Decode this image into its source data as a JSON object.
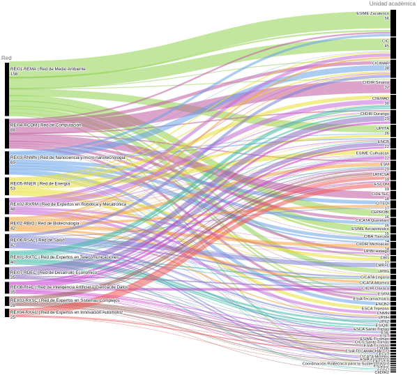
{
  "chart_data": {
    "type": "sankey",
    "left_axis_title": "Red",
    "right_axis_title": "Unidad académica",
    "sources": [
      {
        "label": "REI01-REMA | Red de Medio Ambiente",
        "value": 158,
        "color": "#8fd14f"
      },
      {
        "label": "REI04-RCOM | Red de Computación",
        "value": 88,
        "color": "#c05aa0"
      },
      {
        "label": "REI03-RNMN | Red de Nanociencia y micro-nanotecnología",
        "value": 69,
        "color": "#6aa3e8"
      },
      {
        "label": "REI05-RNER | Red de Energía",
        "value": 53,
        "color": "#e8e032"
      },
      {
        "label": "REX02-RXRM | Red de Expertos en Robótica y Mecatrónica",
        "value": 48,
        "color": "#c46ad8"
      },
      {
        "label": "REI02-RBIO | Red de Biotecnología",
        "value": 42,
        "color": "#f5a23a"
      },
      {
        "label": "REI06-RSAL | Red de Salud",
        "value": 42,
        "color": "#7b7fd6"
      },
      {
        "label": "REX01-RXTC | Red de Expertos en Telecomunicaciones",
        "value": 40,
        "color": "#3fb9a8"
      },
      {
        "label": "REI07-RDEC | Red de Desarrollo Económico",
        "value": 35,
        "color": "#8a6bbf"
      },
      {
        "label": "REI08-RIAC | Red de Inteligencia Artificial y Ciencia de Datos",
        "value": 35,
        "color": "#c93ccf"
      },
      {
        "label": "REX03-RXSC | Red de Expertos en Sistemas Complejos",
        "value": 28,
        "color": "#9b5e5e"
      },
      {
        "label": "REX04-RXAU | Red de Expertos en Innovación Automotriz",
        "value": 25,
        "color": "#f05a5a"
      }
    ],
    "targets": [
      {
        "label": "ESIME Zacatenco",
        "value": 56
      },
      {
        "label": "CIC",
        "value": 45
      },
      {
        "label": "CICIMAR",
        "value": 38
      },
      {
        "label": "CIIDIR Sinaloa",
        "value": 32
      },
      {
        "label": "CIIEMAD",
        "value": 30
      },
      {
        "label": "CIIDIR Durango",
        "value": 29
      },
      {
        "label": "UPIITA",
        "value": 26
      },
      {
        "label": "ENCB",
        "value": 22
      },
      {
        "label": "ESIME Culhuacan",
        "value": 22
      },
      {
        "label": "ESM",
        "value": 20
      },
      {
        "label": "UPIICSA",
        "value": 19
      },
      {
        "label": "ESCOM",
        "value": 19
      },
      {
        "label": "CIDETEC",
        "value": 18
      },
      {
        "label": "CITEDI",
        "value": 17
      },
      {
        "label": "CEPROBI",
        "value": 16
      },
      {
        "label": "CICATA Querétaro",
        "value": 16
      },
      {
        "label": "ESIME Azcapotzalco",
        "value": 15
      },
      {
        "label": "CIBA Tlaxcala",
        "value": 14
      },
      {
        "label": "CIIDIR Michoacán",
        "value": 14
      },
      {
        "label": "UPIBI Hidalgo",
        "value": 12
      },
      {
        "label": "CBG",
        "value": 12
      },
      {
        "label": "CMP+L",
        "value": 11
      },
      {
        "label": "UPIIG",
        "value": 11
      },
      {
        "label": "CICATA Legaria",
        "value": 10
      },
      {
        "label": "CICATA Altamira",
        "value": 10
      },
      {
        "label": "CIIDIR Oaxaca",
        "value": 10
      },
      {
        "label": "ESFM",
        "value": 9
      },
      {
        "label": "ESIA Tecamachalco",
        "value": 9
      },
      {
        "label": "ENCB2",
        "value": 8
      },
      {
        "label": "ESCA Tepepan",
        "value": 8
      },
      {
        "label": "CNMN",
        "value": 7
      },
      {
        "label": "UPIIH",
        "value": 7
      },
      {
        "label": "UPIIZ",
        "value": 7
      },
      {
        "label": "ESIQIE",
        "value": 6
      },
      {
        "label": "ESCA Santo Tomás",
        "value": 6
      },
      {
        "label": "ESE",
        "value": 5
      },
      {
        "label": "ESIT",
        "value": 5
      },
      {
        "label": "ESIME Ticomán",
        "value": 5
      },
      {
        "label": "CICS Santo Tomás",
        "value": 5
      },
      {
        "label": "ESIA Ticomán",
        "value": 5
      },
      {
        "label": "CIIDIR",
        "value": 4
      },
      {
        "label": "ESIA TECAMACHALCO",
        "value": 4
      },
      {
        "label": "CECyT",
        "value": 4
      },
      {
        "label": "CICATA Morelos",
        "value": 4
      },
      {
        "label": "ESIA Zacatenco",
        "value": 3
      },
      {
        "label": "CECyT 9",
        "value": 3
      },
      {
        "label": "Coordinación Politécnica para la Sustentabilidad",
        "value": 3
      },
      {
        "label": "ESIQIE2",
        "value": 2
      },
      {
        "label": "UPIIS",
        "value": 2
      },
      {
        "label": "ESEO",
        "value": 2
      },
      {
        "label": "ENMH",
        "value": 1
      },
      {
        "label": "CIIDIR2",
        "value": 1
      }
    ]
  }
}
